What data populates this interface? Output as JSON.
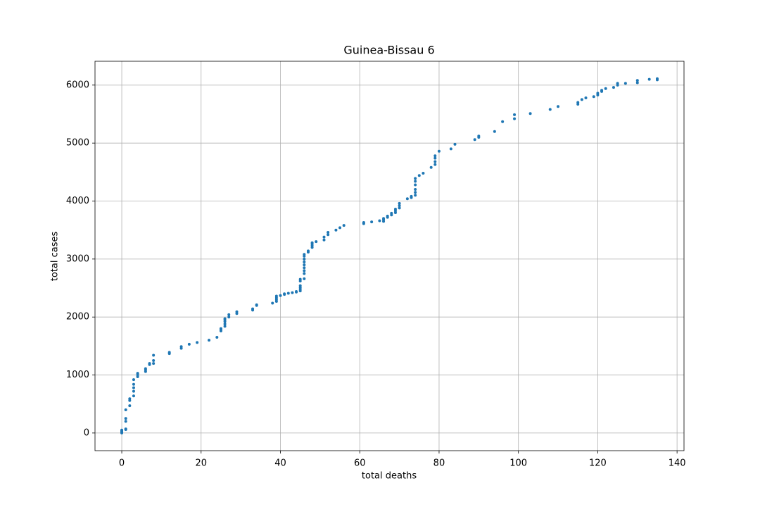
{
  "chart_data": {
    "type": "scatter",
    "title": "Guinea-Bissau 6",
    "x_label": "total deaths",
    "y_label": "total cases",
    "color": "#1f77b4",
    "grid": true,
    "xlim": [
      -6.75,
      141.75
    ],
    "ylim": [
      -305,
      6411
    ],
    "xticks": [
      0,
      20,
      40,
      60,
      80,
      100,
      120,
      140
    ],
    "yticks": [
      0,
      1000,
      2000,
      3000,
      4000,
      5000,
      6000
    ],
    "x": [
      0,
      0,
      0,
      0,
      0,
      0,
      1,
      1,
      1,
      1,
      1,
      2,
      2,
      2,
      3,
      3,
      3,
      3,
      3,
      4,
      4,
      4,
      6,
      6,
      6,
      7,
      7,
      8,
      8,
      8,
      12,
      12,
      15,
      15,
      17,
      19,
      22,
      24,
      25,
      25,
      25,
      26,
      26,
      26,
      26,
      26,
      27,
      27,
      29,
      29,
      33,
      33,
      34,
      34,
      38,
      39,
      39,
      39,
      39,
      40,
      41,
      41,
      42,
      43,
      44,
      44,
      45,
      45,
      45,
      45,
      45,
      45,
      46,
      46,
      46,
      46,
      46,
      46,
      46,
      46,
      46,
      47,
      47,
      48,
      48,
      48,
      48,
      49,
      51,
      51,
      52,
      52,
      54,
      55,
      56,
      61,
      61,
      63,
      65,
      66,
      66,
      66,
      67,
      67,
      68,
      68,
      69,
      69,
      69,
      70,
      70,
      70,
      72,
      73,
      73,
      74,
      74,
      74,
      74,
      74,
      74,
      75,
      76,
      78,
      79,
      79,
      79,
      79,
      80,
      83,
      84,
      89,
      90,
      90,
      94,
      96,
      99,
      99,
      103,
      108,
      110,
      115,
      115,
      116,
      117,
      119,
      120,
      120,
      121,
      121,
      122,
      124,
      125,
      125,
      127,
      130,
      130,
      133,
      135,
      135
    ],
    "values": [
      0,
      10,
      20,
      30,
      40,
      50,
      60,
      70,
      200,
      250,
      400,
      470,
      560,
      590,
      640,
      720,
      780,
      840,
      920,
      970,
      1000,
      1030,
      1060,
      1090,
      1110,
      1180,
      1200,
      1200,
      1250,
      1340,
      1370,
      1390,
      1460,
      1490,
      1530,
      1560,
      1600,
      1650,
      1760,
      1780,
      1800,
      1840,
      1880,
      1920,
      1950,
      1970,
      2000,
      2040,
      2060,
      2090,
      2120,
      2140,
      2200,
      2210,
      2240,
      2270,
      2300,
      2330,
      2360,
      2370,
      2390,
      2400,
      2410,
      2420,
      2430,
      2440,
      2450,
      2480,
      2510,
      2540,
      2620,
      2650,
      2660,
      2750,
      2800,
      2850,
      2900,
      2950,
      3000,
      3050,
      3080,
      3120,
      3140,
      3200,
      3230,
      3260,
      3280,
      3300,
      3330,
      3380,
      3420,
      3460,
      3500,
      3540,
      3580,
      3610,
      3630,
      3640,
      3660,
      3650,
      3680,
      3700,
      3720,
      3740,
      3760,
      3790,
      3800,
      3830,
      3860,
      3880,
      3920,
      3960,
      4040,
      4060,
      4080,
      4100,
      4150,
      4200,
      4280,
      4340,
      4390,
      4440,
      4480,
      4580,
      4630,
      4680,
      4740,
      4780,
      4860,
      4900,
      4980,
      5060,
      5100,
      5120,
      5200,
      5370,
      5420,
      5490,
      5510,
      5580,
      5630,
      5670,
      5700,
      5750,
      5780,
      5800,
      5830,
      5860,
      5890,
      5910,
      5940,
      5960,
      6000,
      6030,
      6030,
      6040,
      6080,
      6100,
      6090,
      6110
    ]
  }
}
